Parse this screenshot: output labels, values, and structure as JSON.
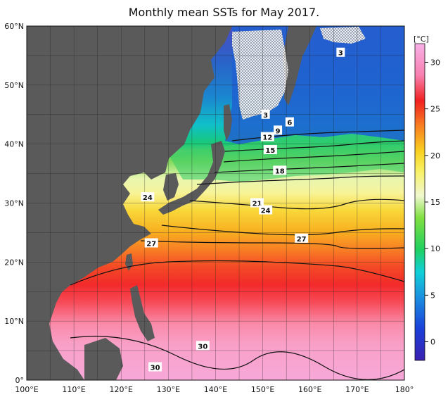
{
  "title": "Monthly mean SSTs for May 2017.",
  "colorbar": {
    "unit": "[°C]",
    "ticks": [
      "30",
      "25",
      "20",
      "15",
      "10",
      "5",
      "0"
    ],
    "min": -2,
    "max": 32
  },
  "axes": {
    "lat_labels": [
      "60°N",
      "50°N",
      "40°N",
      "30°N",
      "20°N",
      "10°N",
      "0°"
    ],
    "lon_labels": [
      "100°E",
      "110°E",
      "120°E",
      "130°E",
      "140°E",
      "150°E",
      "160°E",
      "170°E",
      "180°"
    ],
    "lat_range": [
      0,
      60
    ],
    "lon_range": [
      100,
      180
    ]
  },
  "contour_labels": [
    "3",
    "3",
    "6",
    "9",
    "12",
    "15",
    "18",
    "21",
    "24",
    "24",
    "27",
    "27",
    "30",
    "30"
  ],
  "colors": {
    "land": "#5a5a5a",
    "sea_ice": "#ffffff"
  }
}
